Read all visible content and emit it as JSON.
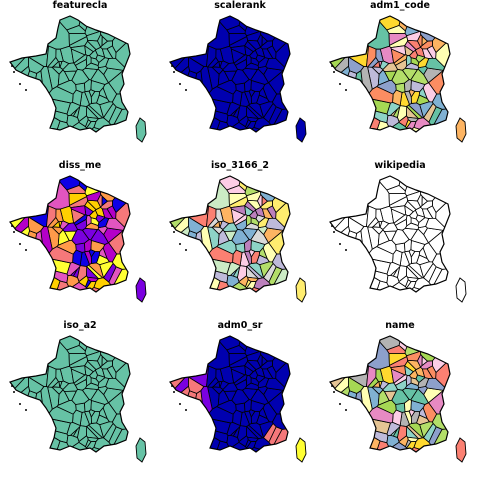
{
  "panels": [
    {
      "title": "featurecla",
      "colors": [
        "#66c2a5"
      ]
    },
    {
      "title": "scalerank",
      "colors": [
        "#0000b0"
      ]
    },
    {
      "title": "adm1_code",
      "colors": [
        "#66c2a5",
        "#fc8d62",
        "#8da0cb",
        "#e78ac3",
        "#a6d854",
        "#ffd92f",
        "#e5c494",
        "#b3b3b3",
        "#8dd3c7",
        "#ffffb3",
        "#bebada",
        "#fb8072",
        "#80b1d3",
        "#fdb462",
        "#b3de69",
        "#fccde5"
      ]
    },
    {
      "title": "diss_me",
      "colors": [
        "#0d00e6",
        "#7a00e0",
        "#b400c8",
        "#e255c0",
        "#f5787a",
        "#ff9a4a",
        "#ffd000",
        "#ffff33"
      ]
    },
    {
      "title": "iso_3166_2",
      "colors": [
        "#8dd3c7",
        "#ffffb3",
        "#bebada",
        "#fb8072",
        "#80b1d3",
        "#fdb462",
        "#b3de69",
        "#fccde5",
        "#d9d9d9",
        "#bc80bd",
        "#ccebc5",
        "#ffed6f"
      ]
    },
    {
      "title": "wikipedia",
      "colors": [
        "#ffffff"
      ]
    },
    {
      "title": "iso_a2",
      "colors": [
        "#66c2a5"
      ]
    },
    {
      "title": "adm0_sr",
      "colors": [
        "#0000b0",
        "#7a00e0",
        "#f5787a",
        "#ffff33"
      ]
    },
    {
      "title": "name",
      "colors": [
        "#66c2a5",
        "#fc8d62",
        "#8da0cb",
        "#e78ac3",
        "#a6d854",
        "#ffd92f",
        "#e5c494",
        "#b3b3b3",
        "#8dd3c7",
        "#ffffb3",
        "#bebada",
        "#fb8072",
        "#80b1d3",
        "#fdb462",
        "#b3de69",
        "#fccde5"
      ]
    }
  ]
}
